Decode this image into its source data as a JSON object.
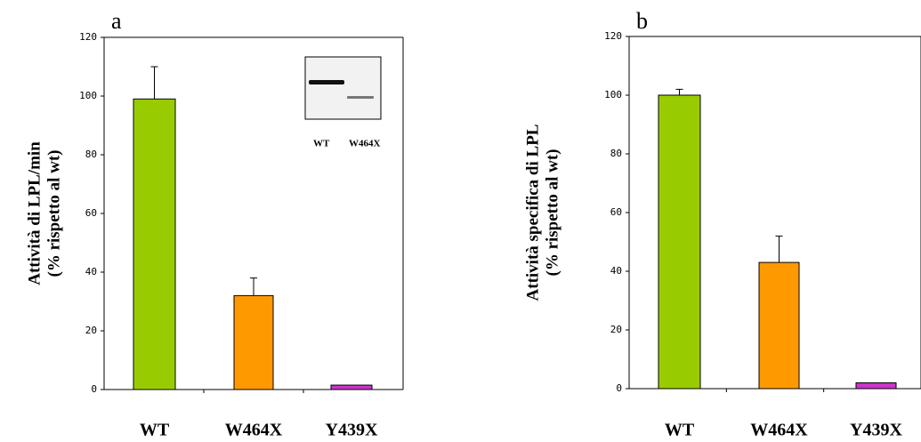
{
  "chart_data": [
    {
      "type": "bar",
      "panel_label": "a",
      "y_label": [
        "Attività di LPL/min",
        "(%  rispetto al wt)"
      ],
      "categories": [
        "WT",
        "W464X",
        "Y439X"
      ],
      "values": [
        99,
        32,
        1.5
      ],
      "errors": [
        11,
        6,
        null
      ],
      "colors": [
        "#99cc00",
        "#ff9900",
        "#cc33cc"
      ],
      "ylim": [
        0,
        120
      ],
      "yticks": [
        0,
        20,
        40,
        60,
        80,
        100,
        120
      ],
      "inset_labels": [
        "WT",
        "W464X"
      ]
    },
    {
      "type": "bar",
      "panel_label": "b",
      "y_label": [
        "Attività specifica di LPL",
        "(%  rispetto al wt)"
      ],
      "categories": [
        "WT",
        "W464X",
        "Y439X"
      ],
      "values": [
        100,
        43,
        2
      ],
      "errors": [
        2,
        9,
        null
      ],
      "colors": [
        "#99cc00",
        "#ff9900",
        "#cc33cc"
      ],
      "ylim": [
        0,
        120
      ],
      "yticks": [
        0,
        20,
        40,
        60,
        80,
        100,
        120
      ]
    }
  ]
}
